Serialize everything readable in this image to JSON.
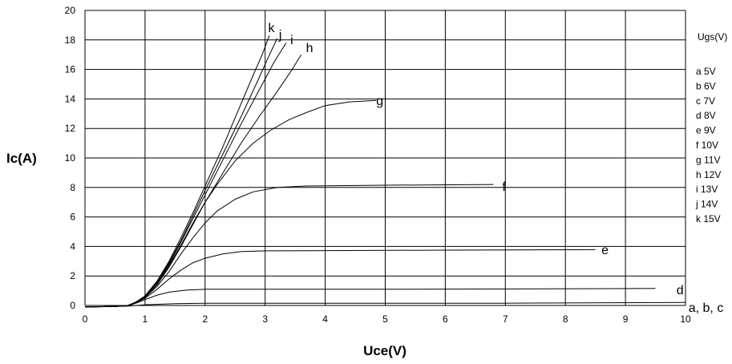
{
  "chart_data": {
    "type": "line",
    "title": "",
    "xlabel": "Uce(V)",
    "ylabel": "Ic(A)",
    "xlim": [
      0,
      10
    ],
    "ylim": [
      0,
      20
    ],
    "x_ticks": [
      "0",
      "1",
      "2",
      "3",
      "4",
      "5",
      "6",
      "7",
      "8",
      "9",
      "10"
    ],
    "y_ticks": [
      "0",
      "2",
      "4",
      "6",
      "8",
      "10",
      "12",
      "14",
      "16",
      "18",
      "20"
    ],
    "grid": true,
    "legend": {
      "title": "Ugs(V)",
      "placement": "right",
      "entries": [
        {
          "key": "a",
          "value": "5V"
        },
        {
          "key": "b",
          "value": "6V"
        },
        {
          "key": "c",
          "value": "7V"
        },
        {
          "key": "d",
          "value": "8V"
        },
        {
          "key": "e",
          "value": "9V"
        },
        {
          "key": "f",
          "value": "10V"
        },
        {
          "key": "g",
          "value": "11V"
        },
        {
          "key": "h",
          "value": "12V"
        },
        {
          "key": "i",
          "value": "13V"
        },
        {
          "key": "j",
          "value": "14V"
        },
        {
          "key": "k",
          "value": "15V"
        }
      ]
    },
    "series": [
      {
        "id": "abc",
        "label": "a, b, c",
        "label_at": [
          10.05,
          -0.1
        ],
        "points": [
          [
            0,
            -0.1
          ],
          [
            0.7,
            -0.05
          ],
          [
            1,
            0.05
          ],
          [
            1.5,
            0.12
          ],
          [
            2,
            0.15
          ],
          [
            4,
            0.15
          ],
          [
            7,
            0.15
          ],
          [
            10,
            0.2
          ]
        ]
      },
      {
        "id": "d",
        "label": "d",
        "label_at": [
          9.85,
          1.1
        ],
        "points": [
          [
            0,
            -0.1
          ],
          [
            0.5,
            -0.07
          ],
          [
            0.7,
            -0.02
          ],
          [
            0.85,
            0.15
          ],
          [
            1,
            0.4
          ],
          [
            1.2,
            0.7
          ],
          [
            1.4,
            0.9
          ],
          [
            1.7,
            1.05
          ],
          [
            2,
            1.1
          ],
          [
            3,
            1.1
          ],
          [
            5,
            1.1
          ],
          [
            7,
            1.12
          ],
          [
            9.5,
            1.15
          ]
        ]
      },
      {
        "id": "e",
        "label": "e",
        "label_at": [
          8.6,
          3.8
        ],
        "points": [
          [
            0,
            -0.1
          ],
          [
            0.5,
            -0.07
          ],
          [
            0.7,
            -0.02
          ],
          [
            0.85,
            0.18
          ],
          [
            1,
            0.5
          ],
          [
            1.2,
            1.1
          ],
          [
            1.4,
            1.8
          ],
          [
            1.6,
            2.4
          ],
          [
            1.8,
            2.9
          ],
          [
            2,
            3.2
          ],
          [
            2.3,
            3.5
          ],
          [
            2.6,
            3.65
          ],
          [
            3,
            3.7
          ],
          [
            4,
            3.72
          ],
          [
            6,
            3.75
          ],
          [
            8.5,
            3.78
          ]
        ]
      },
      {
        "id": "f",
        "label": "f",
        "label_at": [
          6.95,
          8.1
        ],
        "points": [
          [
            0,
            -0.1
          ],
          [
            0.5,
            -0.07
          ],
          [
            0.7,
            -0.02
          ],
          [
            0.85,
            0.2
          ],
          [
            1,
            0.55
          ],
          [
            1.2,
            1.3
          ],
          [
            1.4,
            2.3
          ],
          [
            1.6,
            3.5
          ],
          [
            1.8,
            4.6
          ],
          [
            2,
            5.6
          ],
          [
            2.2,
            6.4
          ],
          [
            2.5,
            7.2
          ],
          [
            2.8,
            7.7
          ],
          [
            3.2,
            8.0
          ],
          [
            3.7,
            8.1
          ],
          [
            5,
            8.15
          ],
          [
            6.8,
            8.2
          ]
        ]
      },
      {
        "id": "g",
        "label": "g",
        "label_at": [
          4.85,
          13.9
        ],
        "points": [
          [
            0,
            -0.1
          ],
          [
            0.5,
            -0.07
          ],
          [
            0.7,
            -0.02
          ],
          [
            0.85,
            0.2
          ],
          [
            1,
            0.55
          ],
          [
            1.2,
            1.4
          ],
          [
            1.4,
            2.6
          ],
          [
            1.6,
            4.0
          ],
          [
            1.8,
            5.5
          ],
          [
            2,
            7.0
          ],
          [
            2.2,
            8.2
          ],
          [
            2.5,
            9.8
          ],
          [
            2.8,
            11.0
          ],
          [
            3.1,
            11.9
          ],
          [
            3.4,
            12.6
          ],
          [
            3.7,
            13.1
          ],
          [
            4.0,
            13.55
          ],
          [
            4.4,
            13.8
          ],
          [
            4.85,
            13.9
          ]
        ]
      },
      {
        "id": "h",
        "label": "h",
        "label_at": [
          3.68,
          17.5
        ],
        "points": [
          [
            0,
            -0.1
          ],
          [
            0.5,
            -0.07
          ],
          [
            0.7,
            -0.02
          ],
          [
            0.85,
            0.22
          ],
          [
            1,
            0.6
          ],
          [
            1.2,
            1.5
          ],
          [
            1.4,
            2.7
          ],
          [
            1.6,
            4.1
          ],
          [
            1.8,
            5.6
          ],
          [
            2,
            7.0
          ],
          [
            2.3,
            9.0
          ],
          [
            2.6,
            11.0
          ],
          [
            2.9,
            12.8
          ],
          [
            3.2,
            14.5
          ],
          [
            3.45,
            16.0
          ],
          [
            3.6,
            17.0
          ]
        ]
      },
      {
        "id": "i",
        "label": "i",
        "label_at": [
          3.42,
          18.05
        ],
        "points": [
          [
            0,
            -0.1
          ],
          [
            0.5,
            -0.07
          ],
          [
            0.7,
            -0.02
          ],
          [
            0.85,
            0.22
          ],
          [
            1,
            0.62
          ],
          [
            1.2,
            1.55
          ],
          [
            1.4,
            2.8
          ],
          [
            1.6,
            4.3
          ],
          [
            1.8,
            5.9
          ],
          [
            2,
            7.5
          ],
          [
            2.3,
            9.9
          ],
          [
            2.6,
            12.3
          ],
          [
            2.9,
            14.6
          ],
          [
            3.15,
            16.5
          ],
          [
            3.35,
            17.8
          ]
        ]
      },
      {
        "id": "j",
        "label": "j",
        "label_at": [
          3.23,
          18.4
        ],
        "points": [
          [
            0,
            -0.1
          ],
          [
            0.5,
            -0.07
          ],
          [
            0.7,
            -0.02
          ],
          [
            0.85,
            0.23
          ],
          [
            1,
            0.63
          ],
          [
            1.2,
            1.6
          ],
          [
            1.4,
            2.9
          ],
          [
            1.6,
            4.4
          ],
          [
            1.8,
            6.1
          ],
          [
            2,
            7.8
          ],
          [
            2.3,
            10.3
          ],
          [
            2.6,
            12.8
          ],
          [
            2.85,
            15.0
          ],
          [
            3.05,
            16.8
          ],
          [
            3.2,
            18.1
          ]
        ]
      },
      {
        "id": "k",
        "label": "k",
        "label_at": [
          3.05,
          18.85
        ],
        "points": [
          [
            0,
            -0.1
          ],
          [
            0.5,
            -0.07
          ],
          [
            0.7,
            -0.02
          ],
          [
            0.85,
            0.24
          ],
          [
            1,
            0.65
          ],
          [
            1.2,
            1.65
          ],
          [
            1.4,
            3.0
          ],
          [
            1.6,
            4.6
          ],
          [
            1.8,
            6.3
          ],
          [
            2,
            8.1
          ],
          [
            2.3,
            10.8
          ],
          [
            2.55,
            13.2
          ],
          [
            2.8,
            15.6
          ],
          [
            2.95,
            17.0
          ],
          [
            3.07,
            18.3
          ]
        ]
      }
    ]
  }
}
